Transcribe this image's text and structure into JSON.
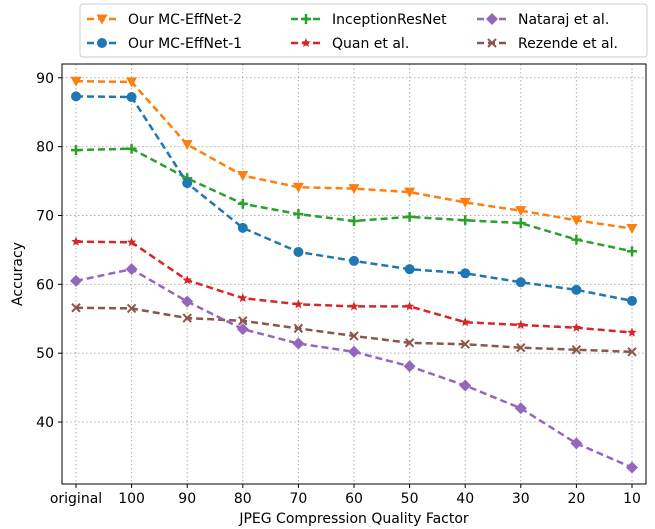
{
  "chart_data": {
    "type": "line",
    "xlabel": "JPEG Compression Quality Factor",
    "ylabel": "Accuracy",
    "categories": [
      "original",
      "100",
      "90",
      "80",
      "70",
      "60",
      "50",
      "40",
      "30",
      "20",
      "10"
    ],
    "yticks": [
      40,
      50,
      60,
      70,
      80,
      90
    ],
    "ylim": [
      31,
      92
    ],
    "grid": true,
    "legend_position": "top",
    "series": [
      {
        "name": "Our MC-EffNet-2",
        "color": "#ff7f0e",
        "marker": "triangle-down",
        "values": [
          89.5,
          89.4,
          80.3,
          75.8,
          74.1,
          73.9,
          73.4,
          71.9,
          70.7,
          69.3,
          68.1
        ]
      },
      {
        "name": "Our MC-EffNet-1",
        "color": "#1f77b4",
        "marker": "circle",
        "values": [
          87.3,
          87.2,
          74.7,
          68.2,
          64.7,
          63.4,
          62.2,
          61.6,
          60.3,
          59.2,
          57.6
        ]
      },
      {
        "name": "InceptionResNet",
        "color": "#2ca02c",
        "marker": "plus",
        "values": [
          79.5,
          79.7,
          75.4,
          71.7,
          70.2,
          69.2,
          69.8,
          69.3,
          68.9,
          66.5,
          64.8
        ]
      },
      {
        "name": "Quan et al.",
        "color": "#d62728",
        "marker": "star",
        "values": [
          66.2,
          66.1,
          60.6,
          58.0,
          57.1,
          56.8,
          56.8,
          54.5,
          54.1,
          53.7,
          53.0
        ]
      },
      {
        "name": "Nataraj et al.",
        "color": "#9467bd",
        "marker": "diamond",
        "values": [
          60.5,
          62.2,
          57.5,
          53.5,
          51.4,
          50.2,
          48.1,
          45.3,
          42.0,
          36.9,
          33.4
        ]
      },
      {
        "name": "Rezende et al.",
        "color": "#8c564b",
        "marker": "x",
        "values": [
          56.6,
          56.5,
          55.1,
          54.7,
          53.6,
          52.5,
          51.5,
          51.3,
          50.8,
          50.5,
          50.2
        ]
      }
    ]
  }
}
